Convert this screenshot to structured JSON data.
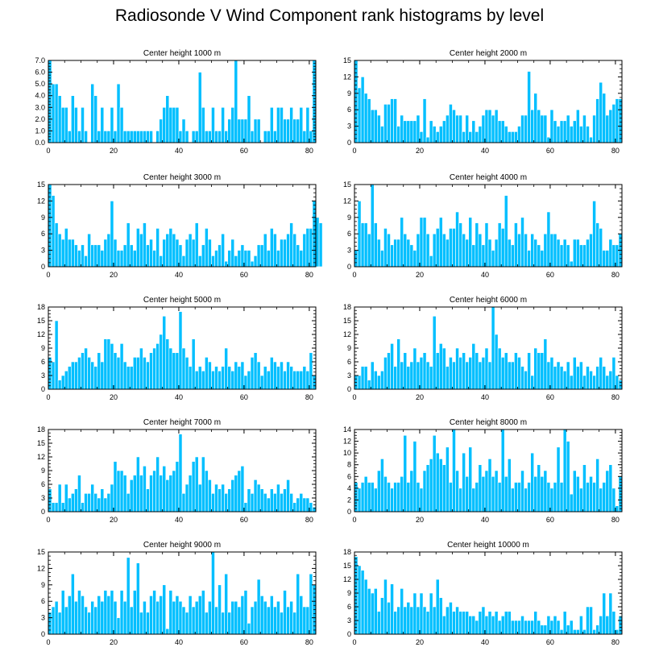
{
  "title": "Radiosonde V Wind Component rank histograms by level",
  "colors": {
    "bar": "#00bfff",
    "bar_edge": "#ffffff",
    "axis": "#000000"
  },
  "chart_data": [
    {
      "type": "bar",
      "title": "Center height 1000 m",
      "xlim": [
        0,
        82
      ],
      "ylim": [
        0,
        7
      ],
      "yticks": [
        0,
        1,
        2,
        3,
        4,
        5,
        6,
        7
      ],
      "ytick_labels": [
        "0.0",
        "1.0",
        "2.0",
        "3.0",
        "4.0",
        "5.0",
        "6.0",
        "7.0"
      ],
      "xticks": [
        0,
        20,
        40,
        60,
        80
      ],
      "values": [
        7,
        5,
        5,
        4,
        3,
        3,
        1,
        4,
        3,
        1,
        3,
        1,
        0,
        5,
        4,
        1,
        3,
        1,
        1,
        3,
        1,
        5,
        3,
        1,
        1,
        1,
        1,
        1,
        1,
        1,
        1,
        1,
        0,
        1,
        2,
        3,
        4,
        3,
        3,
        3,
        1,
        2,
        1,
        0,
        1,
        1,
        6,
        3,
        1,
        1,
        3,
        1,
        1,
        3,
        1,
        2,
        3,
        7,
        2,
        2,
        2,
        4,
        1,
        2,
        2,
        0,
        1,
        1,
        3,
        1,
        3,
        3,
        2,
        2,
        3,
        2,
        2,
        3,
        1,
        3,
        1,
        7
      ]
    },
    {
      "type": "bar",
      "title": "Center height 2000 m",
      "xlim": [
        0,
        82
      ],
      "ylim": [
        0,
        15
      ],
      "yticks": [
        0,
        3,
        6,
        9,
        12,
        15
      ],
      "ytick_labels": [
        "0",
        "3",
        "6",
        "9",
        "12",
        "15"
      ],
      "xticks": [
        0,
        20,
        40,
        60,
        80
      ],
      "values": [
        15,
        10,
        12,
        9,
        8,
        6,
        6,
        5,
        3,
        7,
        7,
        8,
        8,
        3,
        5,
        4,
        4,
        4,
        4,
        5,
        2,
        8,
        1,
        4,
        3,
        2,
        3,
        4,
        5,
        7,
        6,
        5,
        5,
        2,
        5,
        2,
        4,
        2,
        3,
        5,
        6,
        6,
        5,
        6,
        4,
        4,
        3,
        2,
        2,
        2,
        3,
        5,
        5,
        13,
        6,
        9,
        6,
        5,
        5,
        1,
        6,
        4,
        3,
        4,
        4,
        5,
        3,
        4,
        6,
        3,
        5,
        3,
        1,
        5,
        8,
        11,
        9,
        5,
        6,
        7,
        8,
        8
      ]
    },
    {
      "type": "bar",
      "title": "Center height 3000 m",
      "xlim": [
        0,
        82
      ],
      "ylim": [
        0,
        15
      ],
      "yticks": [
        0,
        3,
        6,
        9,
        12,
        15
      ],
      "ytick_labels": [
        "0",
        "3",
        "6",
        "9",
        "12",
        "15"
      ],
      "xticks": [
        0,
        20,
        40,
        60,
        80
      ],
      "values": [
        15,
        13,
        8,
        6,
        5,
        7,
        5,
        5,
        4,
        3,
        4,
        2,
        6,
        4,
        4,
        4,
        3,
        5,
        6,
        12,
        5,
        3,
        3,
        4,
        8,
        4,
        3,
        7,
        6,
        8,
        4,
        5,
        3,
        7,
        2,
        5,
        6,
        7,
        6,
        5,
        4,
        2,
        5,
        6,
        5,
        8,
        2,
        4,
        7,
        5,
        2,
        3,
        4,
        6,
        1,
        3,
        5,
        2,
        3,
        4,
        3,
        3,
        1,
        2,
        4,
        4,
        6,
        3,
        7,
        6,
        3,
        5,
        5,
        6,
        8,
        6,
        4,
        3,
        6,
        7,
        7,
        12,
        9,
        8
      ]
    },
    {
      "type": "bar",
      "title": "Center height 4000 m",
      "xlim": [
        0,
        82
      ],
      "ylim": [
        0,
        15
      ],
      "yticks": [
        0,
        3,
        6,
        9,
        12,
        15
      ],
      "ytick_labels": [
        "0",
        "3",
        "6",
        "9",
        "12",
        "15"
      ],
      "xticks": [
        0,
        20,
        40,
        60,
        80
      ],
      "values": [
        3,
        12,
        8,
        8,
        6,
        15,
        8,
        5,
        3,
        7,
        6,
        4,
        5,
        5,
        9,
        6,
        5,
        4,
        3,
        6,
        9,
        9,
        6,
        2,
        6,
        7,
        9,
        6,
        5,
        7,
        7,
        10,
        8,
        6,
        5,
        9,
        4,
        8,
        6,
        4,
        8,
        5,
        3,
        5,
        8,
        7,
        13,
        5,
        4,
        8,
        6,
        9,
        6,
        3,
        6,
        5,
        4,
        3,
        6,
        10,
        6,
        6,
        5,
        4,
        5,
        4,
        1,
        5,
        5,
        4,
        4,
        5,
        6,
        12,
        8,
        7,
        3,
        3,
        5,
        4,
        4,
        6
      ]
    },
    {
      "type": "bar",
      "title": "Center height 5000 m",
      "xlim": [
        0,
        82
      ],
      "ylim": [
        0,
        18
      ],
      "yticks": [
        0,
        3,
        6,
        9,
        12,
        15,
        18
      ],
      "ytick_labels": [
        "0",
        "3",
        "6",
        "9",
        "12",
        "15",
        "18"
      ],
      "xticks": [
        0,
        20,
        40,
        60,
        80
      ],
      "values": [
        7,
        6,
        15,
        2,
        3,
        4,
        5,
        6,
        6,
        7,
        8,
        9,
        7,
        6,
        5,
        8,
        6,
        11,
        11,
        10,
        8,
        7,
        10,
        6,
        5,
        5,
        7,
        7,
        9,
        7,
        6,
        8,
        9,
        10,
        12,
        16,
        11,
        9,
        8,
        8,
        17,
        9,
        7,
        5,
        11,
        4,
        5,
        4,
        7,
        6,
        4,
        5,
        4,
        5,
        9,
        5,
        4,
        6,
        5,
        6,
        3,
        4,
        7,
        8,
        6,
        3,
        5,
        4,
        7,
        6,
        5,
        6,
        4,
        6,
        5,
        4,
        4,
        4,
        5,
        4,
        8,
        3
      ]
    },
    {
      "type": "bar",
      "title": "Center height 6000 m",
      "xlim": [
        0,
        82
      ],
      "ylim": [
        0,
        18
      ],
      "yticks": [
        0,
        3,
        6,
        9,
        12,
        15,
        18
      ],
      "ytick_labels": [
        "0",
        "3",
        "6",
        "9",
        "12",
        "15",
        "18"
      ],
      "xticks": [
        0,
        20,
        40,
        60,
        80
      ],
      "values": [
        3,
        3,
        5,
        5,
        2,
        6,
        4,
        3,
        4,
        7,
        8,
        10,
        5,
        11,
        6,
        8,
        5,
        6,
        9,
        6,
        7,
        8,
        6,
        5,
        16,
        8,
        10,
        9,
        5,
        7,
        6,
        9,
        7,
        8,
        6,
        7,
        10,
        8,
        6,
        7,
        9,
        6,
        18,
        12,
        9,
        7,
        8,
        6,
        6,
        8,
        7,
        5,
        4,
        8,
        3,
        9,
        8,
        8,
        11,
        6,
        7,
        5,
        6,
        5,
        4,
        6,
        3,
        7,
        5,
        6,
        3,
        5,
        4,
        3,
        5,
        7,
        5,
        3,
        4,
        7,
        3,
        2
      ]
    },
    {
      "type": "bar",
      "title": "Center height 7000 m",
      "xlim": [
        0,
        82
      ],
      "ylim": [
        0,
        18
      ],
      "yticks": [
        0,
        3,
        6,
        9,
        12,
        15,
        18
      ],
      "ytick_labels": [
        "0",
        "3",
        "6",
        "9",
        "12",
        "15",
        "18"
      ],
      "xticks": [
        0,
        20,
        40,
        60,
        80
      ],
      "values": [
        5,
        2,
        2,
        6,
        2,
        6,
        3,
        4,
        5,
        8,
        2,
        4,
        4,
        6,
        4,
        3,
        5,
        3,
        4,
        6,
        11,
        9,
        9,
        8,
        4,
        7,
        8,
        12,
        8,
        10,
        5,
        8,
        9,
        12,
        8,
        10,
        7,
        8,
        9,
        11,
        17,
        4,
        6,
        8,
        11,
        12,
        6,
        12,
        9,
        7,
        4,
        6,
        5,
        6,
        4,
        5,
        7,
        8,
        9,
        10,
        2,
        5,
        4,
        7,
        6,
        5,
        4,
        3,
        5,
        4,
        6,
        4,
        5,
        7,
        4,
        2,
        3,
        4,
        3,
        3,
        2,
        1
      ]
    },
    {
      "type": "bar",
      "title": "Center height 8000 m",
      "xlim": [
        0,
        82
      ],
      "ylim": [
        0,
        14
      ],
      "yticks": [
        0,
        2,
        4,
        6,
        8,
        10,
        12,
        14
      ],
      "ytick_labels": [
        "0",
        "2",
        "4",
        "6",
        "8",
        "10",
        "12",
        "14"
      ],
      "xticks": [
        0,
        20,
        40,
        60,
        80
      ],
      "values": [
        5,
        4,
        5,
        6,
        5,
        5,
        4,
        7,
        9,
        6,
        5,
        4,
        5,
        5,
        6,
        13,
        5,
        7,
        12,
        5,
        4,
        7,
        8,
        9,
        13,
        10,
        9,
        8,
        11,
        5,
        14,
        7,
        4,
        10,
        6,
        11,
        4,
        5,
        8,
        6,
        7,
        9,
        6,
        7,
        5,
        14,
        6,
        9,
        4,
        5,
        5,
        7,
        4,
        5,
        10,
        6,
        8,
        6,
        7,
        5,
        4,
        5,
        11,
        5,
        14,
        12,
        3,
        7,
        6,
        4,
        8,
        5,
        6,
        5,
        9,
        4,
        5,
        7,
        8,
        4,
        1,
        6
      ]
    },
    {
      "type": "bar",
      "title": "Center height 9000 m",
      "xlim": [
        0,
        82
      ],
      "ylim": [
        0,
        15
      ],
      "yticks": [
        0,
        3,
        6,
        9,
        12,
        15
      ],
      "ytick_labels": [
        "0",
        "3",
        "6",
        "9",
        "12",
        "15"
      ],
      "xticks": [
        0,
        20,
        40,
        60,
        80
      ],
      "values": [
        4,
        5,
        6,
        4,
        8,
        5,
        7,
        11,
        6,
        8,
        7,
        5,
        4,
        6,
        5,
        7,
        6,
        8,
        7,
        8,
        6,
        3,
        8,
        6,
        14,
        5,
        8,
        13,
        4,
        6,
        4,
        7,
        8,
        6,
        7,
        9,
        1,
        8,
        6,
        7,
        6,
        5,
        4,
        7,
        5,
        6,
        7,
        8,
        4,
        6,
        15,
        5,
        9,
        4,
        11,
        4,
        6,
        6,
        5,
        7,
        8,
        2,
        5,
        6,
        10,
        7,
        6,
        5,
        7,
        5,
        6,
        4,
        8,
        5,
        6,
        4,
        11,
        7,
        5,
        5,
        11,
        9
      ]
    },
    {
      "type": "bar",
      "title": "Center height 10000 m",
      "xlim": [
        0,
        82
      ],
      "ylim": [
        0,
        18
      ],
      "yticks": [
        0,
        3,
        6,
        9,
        12,
        15,
        18
      ],
      "ytick_labels": [
        "0",
        "3",
        "6",
        "9",
        "12",
        "15",
        "18"
      ],
      "xticks": [
        0,
        20,
        40,
        60,
        80
      ],
      "values": [
        17,
        15,
        14,
        12,
        10,
        9,
        10,
        5,
        8,
        12,
        7,
        11,
        5,
        6,
        10,
        6,
        7,
        6,
        9,
        6,
        9,
        6,
        5,
        9,
        6,
        12,
        8,
        4,
        6,
        7,
        5,
        6,
        5,
        5,
        5,
        4,
        4,
        3,
        5,
        6,
        4,
        5,
        4,
        5,
        3,
        4,
        5,
        5,
        3,
        3,
        3,
        4,
        3,
        3,
        3,
        5,
        3,
        2,
        2,
        4,
        3,
        4,
        3,
        1,
        5,
        2,
        3,
        1,
        1,
        4,
        1,
        6,
        6,
        1,
        2,
        4,
        9,
        4,
        9,
        5,
        1,
        4
      ]
    }
  ]
}
